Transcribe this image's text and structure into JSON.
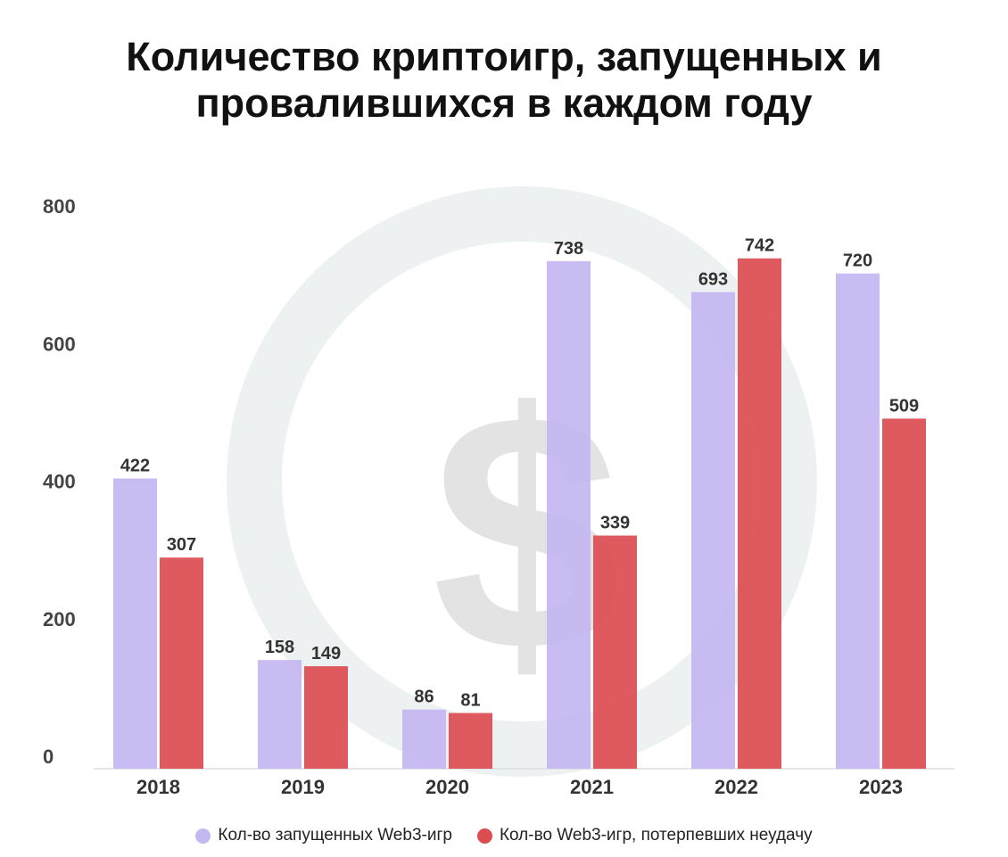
{
  "title_line1": "Количество криптоигр, запущенных и",
  "title_line2": "провалившихся в каждом году",
  "chart_data": {
    "type": "bar",
    "categories": [
      "2018",
      "2019",
      "2020",
      "2021",
      "2022",
      "2023"
    ],
    "series": [
      {
        "name": "Кол-во запущенных Web3-игр",
        "color": "#c4b7f2",
        "values": [
          422,
          158,
          86,
          738,
          693,
          720
        ]
      },
      {
        "name": "Кол-во Web3-игр, потерпевших неудачу",
        "color": "#dc4d52",
        "values": [
          307,
          149,
          81,
          339,
          742,
          509
        ]
      }
    ],
    "data_labels": [
      [
        "422",
        "158",
        "86",
        "738",
        "693",
        "720"
      ],
      [
        "307",
        "149",
        "81",
        "339",
        "742",
        "509"
      ]
    ],
    "yticks": [
      0,
      200,
      400,
      600,
      800
    ],
    "ylim": [
      0,
      800
    ],
    "grid": false,
    "legend": "bottom",
    "title": "Количество криптоигр, запущенных и провалившихся в каждом году",
    "xlabel": "",
    "ylabel": ""
  },
  "background_icon": "dollar-ring-icon"
}
